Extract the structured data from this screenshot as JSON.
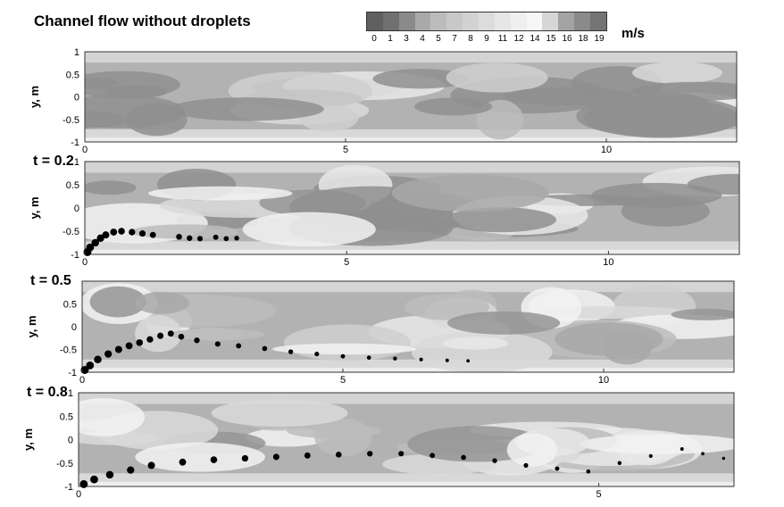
{
  "header": {
    "title": "Channel flow without droplets"
  },
  "legend": {
    "labels": [
      "0",
      "1",
      "3",
      "4",
      "5",
      "7",
      "8",
      "9",
      "11",
      "12",
      "14",
      "15",
      "16",
      "18",
      "19"
    ],
    "units": "m/s",
    "colors": [
      "#606060",
      "#707070",
      "#8a8a8a",
      "#a9a9a9",
      "#bcbcbc",
      "#c8c8c8",
      "#d2d2d2",
      "#dcdcdc",
      "#e6e6e6",
      "#efefef",
      "#f7f7f7",
      "#d6d6d6",
      "#a3a3a3",
      "#8a8a8a",
      "#747474"
    ]
  },
  "chart_data": [
    {
      "type": "heatmap",
      "title": "Channel flow without droplets",
      "xlabel": "",
      "ylabel": "y, m",
      "xlim": [
        0,
        12.5
      ],
      "ylim": [
        -1,
        1
      ],
      "x_ticks": [
        "0",
        "5",
        "10"
      ],
      "y_ticks": [
        "1",
        "0.5",
        "0",
        "-0.5",
        "-1"
      ],
      "droplets": []
    },
    {
      "type": "heatmap",
      "panel_label": "t = 0.2",
      "ylabel": "y, m",
      "xlim": [
        0,
        12.5
      ],
      "ylim": [
        -1,
        1
      ],
      "x_ticks": [
        "0",
        "5",
        "10"
      ],
      "y_ticks": [
        "1",
        "0.5",
        "0",
        "-0.5",
        "-1"
      ],
      "droplets": [
        [
          0.05,
          -0.95
        ],
        [
          0.1,
          -0.85
        ],
        [
          0.2,
          -0.75
        ],
        [
          0.3,
          -0.65
        ],
        [
          0.4,
          -0.58
        ],
        [
          0.55,
          -0.52
        ],
        [
          0.7,
          -0.5
        ],
        [
          0.9,
          -0.52
        ],
        [
          1.1,
          -0.55
        ],
        [
          1.3,
          -0.58
        ],
        [
          1.8,
          -0.62
        ],
        [
          2.0,
          -0.65
        ],
        [
          2.2,
          -0.66
        ],
        [
          2.5,
          -0.63
        ],
        [
          2.7,
          -0.66
        ],
        [
          2.9,
          -0.65
        ]
      ]
    },
    {
      "type": "heatmap",
      "panel_label": "t = 0.5",
      "ylabel": "y, m",
      "xlim": [
        0,
        12.5
      ],
      "ylim": [
        -1,
        1
      ],
      "x_ticks": [
        "0",
        "5",
        "10"
      ],
      "y_ticks": [
        "0.5",
        "0",
        "-0.5",
        "-1"
      ],
      "droplets": [
        [
          0.05,
          -0.95
        ],
        [
          0.15,
          -0.85
        ],
        [
          0.3,
          -0.72
        ],
        [
          0.5,
          -0.6
        ],
        [
          0.7,
          -0.5
        ],
        [
          0.9,
          -0.42
        ],
        [
          1.1,
          -0.35
        ],
        [
          1.3,
          -0.28
        ],
        [
          1.5,
          -0.2
        ],
        [
          1.7,
          -0.15
        ],
        [
          1.9,
          -0.22
        ],
        [
          2.2,
          -0.3
        ],
        [
          2.6,
          -0.38
        ],
        [
          3.0,
          -0.42
        ],
        [
          3.5,
          -0.48
        ],
        [
          4.0,
          -0.55
        ],
        [
          4.5,
          -0.6
        ],
        [
          5.0,
          -0.65
        ],
        [
          5.5,
          -0.68
        ],
        [
          6.0,
          -0.7
        ],
        [
          6.5,
          -0.72
        ],
        [
          7.0,
          -0.74
        ],
        [
          7.4,
          -0.75
        ]
      ]
    },
    {
      "type": "heatmap",
      "panel_label": "t = 0.8",
      "ylabel": "y, m",
      "xlim": [
        0,
        6.3
      ],
      "ylim": [
        -1,
        1
      ],
      "x_ticks": [
        "0",
        "5"
      ],
      "y_ticks": [
        "1",
        "0.5",
        "0",
        "-0.5",
        "-1"
      ],
      "droplets": [
        [
          0.05,
          -0.95
        ],
        [
          0.15,
          -0.85
        ],
        [
          0.3,
          -0.75
        ],
        [
          0.5,
          -0.65
        ],
        [
          0.7,
          -0.55
        ],
        [
          1.0,
          -0.48
        ],
        [
          1.3,
          -0.43
        ],
        [
          1.6,
          -0.4
        ],
        [
          1.9,
          -0.37
        ],
        [
          2.2,
          -0.34
        ],
        [
          2.5,
          -0.32
        ],
        [
          2.8,
          -0.3
        ],
        [
          3.1,
          -0.3
        ],
        [
          3.4,
          -0.34
        ],
        [
          3.7,
          -0.38
        ],
        [
          4.0,
          -0.45
        ],
        [
          4.3,
          -0.55
        ],
        [
          4.6,
          -0.62
        ],
        [
          4.9,
          -0.68
        ],
        [
          5.2,
          -0.5
        ],
        [
          5.5,
          -0.35
        ],
        [
          5.8,
          -0.2
        ],
        [
          6.0,
          -0.3
        ],
        [
          6.2,
          -0.4
        ]
      ]
    }
  ]
}
